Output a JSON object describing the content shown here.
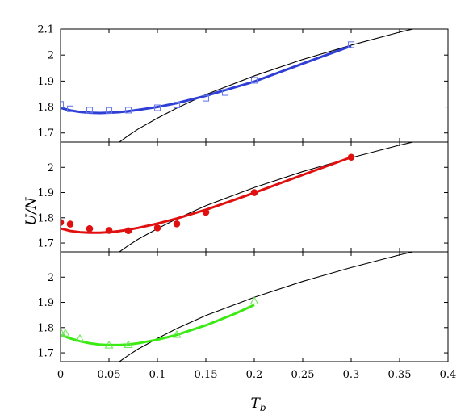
{
  "chart_data": {
    "type": "line",
    "xlabel": "T",
    "xlabel_sub": "b",
    "ylabel": "U/N",
    "xlim": [
      0,
      0.4
    ],
    "x_ticks": [
      0,
      0.05,
      0.1,
      0.15,
      0.2,
      0.25,
      0.3,
      0.35,
      0.4
    ],
    "x_tick_labels": [
      "0",
      "0.05",
      "0.1",
      "0.15",
      "0.2",
      "0.25",
      "0.3",
      "0.35",
      "0.4"
    ],
    "grid": false,
    "legend": "none",
    "panels": [
      {
        "ylim": [
          1.665,
          2.1
        ],
        "y_ticks": [
          1.7,
          1.8,
          1.9,
          2.0,
          2.1
        ],
        "y_tick_labels": [
          "1.7",
          "1.8",
          "1.9",
          "2",
          "2.1"
        ],
        "marker": "open-square",
        "color": "#2f3fd6",
        "marker_color": "#6b7ee8",
        "points": {
          "x": [
            0.0,
            0.01,
            0.03,
            0.05,
            0.07,
            0.1,
            0.12,
            0.15,
            0.17,
            0.2,
            0.3
          ],
          "y": [
            1.81,
            1.793,
            1.788,
            1.787,
            1.788,
            1.797,
            1.808,
            1.834,
            1.856,
            1.903,
            2.04
          ]
        },
        "fit": {
          "x": [
            0.0,
            0.01,
            0.02,
            0.03,
            0.04,
            0.05,
            0.06,
            0.07,
            0.08,
            0.1,
            0.12,
            0.15,
            0.18,
            0.2,
            0.25,
            0.3
          ],
          "y": [
            1.797,
            1.787,
            1.781,
            1.778,
            1.777,
            1.778,
            1.78,
            1.784,
            1.789,
            1.8,
            1.815,
            1.843,
            1.876,
            1.898,
            1.967,
            2.035
          ]
        }
      },
      {
        "ylim": [
          1.665,
          2.1
        ],
        "y_ticks": [
          1.7,
          1.8,
          1.9,
          2.0
        ],
        "y_tick_labels": [
          "1.7",
          "1.8",
          "1.9",
          "2"
        ],
        "marker": "filled-circle",
        "color": "#e01010",
        "marker_color": "#e01010",
        "points": {
          "x": [
            0.0,
            0.01,
            0.03,
            0.05,
            0.07,
            0.1,
            0.12,
            0.15,
            0.2,
            0.3
          ],
          "y": [
            1.782,
            1.775,
            1.757,
            1.75,
            1.749,
            1.76,
            1.776,
            1.822,
            1.9,
            2.04
          ]
        },
        "fit": {
          "x": [
            0.0,
            0.01,
            0.02,
            0.03,
            0.04,
            0.05,
            0.06,
            0.07,
            0.08,
            0.1,
            0.12,
            0.15,
            0.18,
            0.2,
            0.25,
            0.3
          ],
          "y": [
            1.758,
            1.748,
            1.743,
            1.741,
            1.741,
            1.743,
            1.747,
            1.753,
            1.76,
            1.777,
            1.797,
            1.832,
            1.872,
            1.899,
            1.97,
            2.04
          ]
        }
      },
      {
        "ylim": [
          1.665,
          2.1
        ],
        "y_ticks": [
          1.7,
          1.8,
          1.9,
          2.0
        ],
        "y_tick_labels": [
          "1.7",
          "1.8",
          "1.9",
          "2"
        ],
        "marker": "open-triangle",
        "color": "#3bea13",
        "marker_color": "#6ee85a",
        "points": {
          "x": [
            0.0,
            0.005,
            0.02,
            0.05,
            0.07,
            0.12,
            0.2
          ],
          "y": [
            1.783,
            1.778,
            1.756,
            1.73,
            1.732,
            1.772,
            1.905
          ]
        },
        "fit": {
          "x": [
            0.0,
            0.01,
            0.02,
            0.03,
            0.04,
            0.05,
            0.06,
            0.07,
            0.08,
            0.1,
            0.12,
            0.15,
            0.18,
            0.2
          ],
          "y": [
            1.771,
            1.757,
            1.746,
            1.738,
            1.733,
            1.731,
            1.731,
            1.733,
            1.738,
            1.752,
            1.771,
            1.809,
            1.855,
            1.89
          ]
        }
      }
    ],
    "reference_curve": {
      "color": "#000000",
      "x": [
        0.05,
        0.06,
        0.07,
        0.08,
        0.1,
        0.12,
        0.15,
        0.2,
        0.25,
        0.3,
        0.35,
        0.4
      ],
      "y": [
        1.632,
        1.663,
        1.69,
        1.715,
        1.757,
        1.796,
        1.848,
        1.92,
        1.983,
        2.038,
        2.088,
        2.132
      ]
    }
  }
}
